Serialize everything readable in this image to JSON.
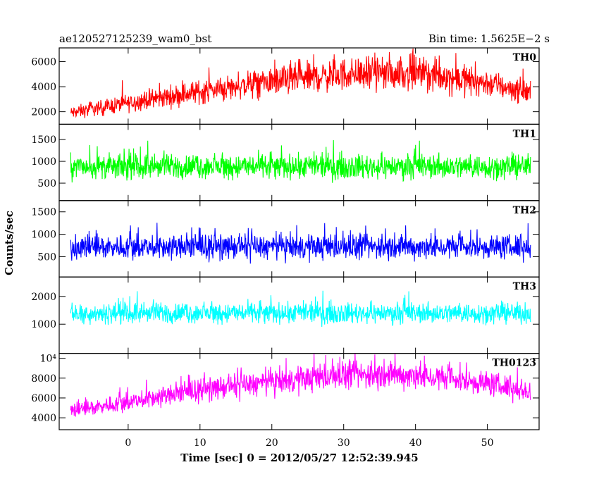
{
  "chart_data": {
    "type": "line",
    "title_left": "ae120527125239_wam0_bst",
    "title_right": "Bin time: 1.5625E−2 s",
    "xlabel": "Time [sec] 0 = 2012/05/27 12:52:39.945",
    "ylabel": "Counts/sec",
    "xlim": [
      -9.6,
      57.2
    ],
    "x_ticks": [
      0,
      10,
      20,
      30,
      40,
      50
    ],
    "x_tick_labels": [
      "0",
      "10",
      "20",
      "30",
      "40",
      "50"
    ],
    "x_range": [
      -8,
      56
    ],
    "panels": [
      {
        "name": "TH0",
        "color": "#ff0000",
        "ylim": [
          1000,
          7100
        ],
        "y_ticks": [
          2000,
          4000,
          6000
        ],
        "y_tick_labels": [
          "2000",
          "4000",
          "6000"
        ],
        "trend_x": [
          -8,
          0,
          10,
          20,
          30,
          40,
          50,
          56
        ],
        "trend_y": [
          1900,
          2700,
          3600,
          4400,
          5000,
          5100,
          4300,
          3500
        ],
        "spread": 0.35
      },
      {
        "name": "TH1",
        "color": "#00ff00",
        "ylim": [
          100,
          1850
        ],
        "y_ticks": [
          500,
          1000,
          1500
        ],
        "y_tick_labels": [
          "500",
          "1000",
          "1500"
        ],
        "trend_x": [
          -8,
          56
        ],
        "trend_y": [
          880,
          880
        ],
        "spread": 0.42
      },
      {
        "name": "TH2",
        "color": "#0000ff",
        "ylim": [
          50,
          1750
        ],
        "y_ticks": [
          500,
          1000,
          1500
        ],
        "y_tick_labels": [
          "500",
          "1000",
          "1500"
        ],
        "trend_x": [
          -8,
          56
        ],
        "trend_y": [
          720,
          720
        ],
        "spread": 0.5
      },
      {
        "name": "TH3",
        "color": "#00ffff",
        "ylim": [
          -50,
          2700
        ],
        "y_ticks": [
          1000,
          2000
        ],
        "y_tick_labels": [
          "1000",
          "2000"
        ],
        "trend_x": [
          -8,
          56
        ],
        "trend_y": [
          1400,
          1400
        ],
        "spread": 0.35
      },
      {
        "name": "TH0123",
        "color": "#ff00ff",
        "ylim": [
          2800,
          10500
        ],
        "y_ticks": [
          4000,
          6000,
          8000,
          10000
        ],
        "y_tick_labels": [
          "4000",
          "6000",
          "8000",
          "10⁴"
        ],
        "trend_x": [
          -8,
          0,
          10,
          20,
          30,
          40,
          50,
          56
        ],
        "trend_y": [
          4700,
          5600,
          6800,
          7600,
          8300,
          8300,
          7500,
          6600
        ],
        "spread": 0.22
      }
    ]
  }
}
